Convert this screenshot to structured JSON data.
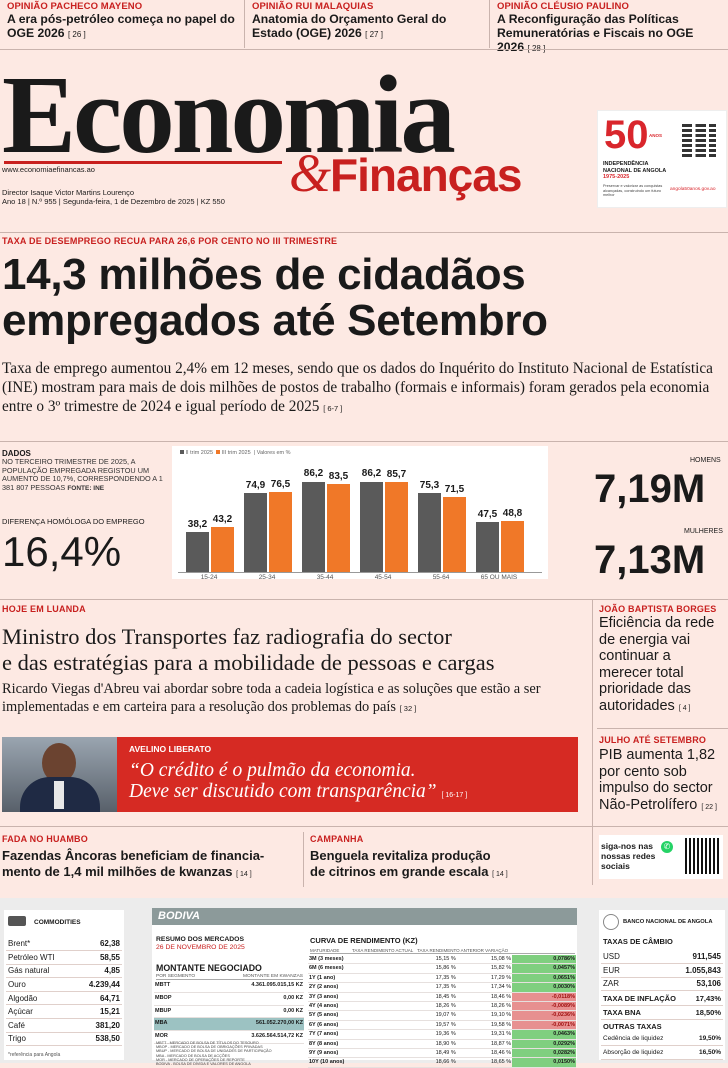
{
  "opinions": [
    {
      "kicker": "OPINIÃO PACHECO MAYENO",
      "title": "A era pós-petróleo começa no papel do OGE 2026",
      "page": "[ 26 ]"
    },
    {
      "kicker": "OPINIÃO RUI MALAQUIAS",
      "title": "Anatomia do Orçamento Geral do Estado (OGE) 2026",
      "page": "[ 27 ]"
    },
    {
      "kicker": "OPINIÃO CLÉUSIO PAULINO",
      "title": "A Reconfiguração das Políticas Remuneratórias e Fiscais no OGE 2026",
      "page": "[ 28 ]"
    }
  ],
  "masthead": {
    "logo_top": "Economia",
    "logo_amp": "&",
    "logo_bottom": "Finanças",
    "url": "www.economiaefinancas.ao",
    "director": "Director Isaque Victor Martins Lourenço",
    "issue": "Ano 18 | N.º 955 | Segunda-feira, 1 de Dezembro de 2025 | KZ 550"
  },
  "ad": {
    "number": "50",
    "anos": "ANOS",
    "line1": "INDEPENDÊNCIA",
    "line2": "NACIONAL DE ANGOLA",
    "years": "1975-2025",
    "tagline": "Preservar e valorizar as conquistas alcançadas, construindo um futuro melhor",
    "link": "angola50anos.gov.ao"
  },
  "main": {
    "kicker": "TAXA DE DESEMPREGO RECUA PARA 26,6 POR CENTO NO III TRIMESTRE",
    "headline_l1": "14,3 milhões de cidadãos",
    "headline_l2": "empregados até Setembro",
    "lead": "Taxa de emprego aumentou 2,4% em 12 meses, sendo que os dados do Inquérito do Instituto Nacional de Estatística (INE) mostram para mais de dois milhões de postos de trabalho (formais e informais) foram gerados pela economia entre o 3º trimestre de 2024 e igual período de 2025",
    "lead_page": "[ 6-7 ]"
  },
  "dados": {
    "title": "DADOS",
    "text": "NO TERCEIRO TRIMESTRE DE 2025, A POPULAÇÃO EMPREGADA REGISTOU UM AUMENTO DE 10,7%, CORRESPONDENDO A 1 381 807 PESSOAS",
    "source": "FONTE: INE",
    "diff_label": "DIFERENÇA HOMÓLOGA DO EMPREGO",
    "diff_value": "16,4%"
  },
  "gender": {
    "homens_label": "HOMENS",
    "homens_value": "7,19M",
    "mulheres_label": "MULHERES",
    "mulheres_value": "7,13M"
  },
  "chart_data": {
    "type": "bar",
    "legend": [
      "II trim 2025",
      "III trim 2025",
      "Valores em %"
    ],
    "categories": [
      "15-24",
      "25-34",
      "35-44",
      "45-54",
      "55-64",
      "65 OU MAIS"
    ],
    "series": [
      {
        "name": "II trim 2025",
        "values": [
          38.2,
          74.9,
          86.2,
          86.2,
          75.3,
          47.5
        ],
        "labels": [
          "38,2",
          "74,9",
          "86,2",
          "86,2",
          "75,3",
          "47,5"
        ],
        "color": "#5a5a5a"
      },
      {
        "name": "III trim 2025",
        "values": [
          43.2,
          76.5,
          83.5,
          85.7,
          71.5,
          48.8
        ],
        "labels": [
          "43,2",
          "76,5",
          "83,5",
          "85,7",
          "71,5",
          "48,8"
        ],
        "color": "#f07828"
      }
    ],
    "ylim": [
      0,
      100
    ]
  },
  "luanda": {
    "kicker": "HOJE EM LUANDA",
    "headline_l1": "Ministro dos Transportes faz radiografia do sector",
    "headline_l2": "e das estratégias para a mobilidade de pessoas e cargas",
    "lead": "Ricardo Viegas d'Abreu vai abordar sobre toda a cadeia logística e as soluções que estão a ser implementadas e em carteira para a resolução dos problemas do país",
    "page": "[ 32 ]"
  },
  "quote": {
    "name": "AVELINO LIBERATO",
    "l1": "“O crédito é o pulmão da economia.",
    "l2": "Deve ser discutido com transparência”",
    "page": "[ 16-17 ]"
  },
  "side": [
    {
      "kicker": "JOÃO BAPTISTA BORGES",
      "title": "Eficiência da rede de energia vai continuar a merecer total prioridade das autoridades",
      "page": "[ 4 ]"
    },
    {
      "kicker": "JULHO ATÉ SETEMBRO",
      "title": "PIB aumenta 1,82 por cento sob impulso do sector Não-Petrolífero",
      "page": "[ 22 ]"
    }
  ],
  "social": "siga-nos nas nossas redes sociais",
  "bottom_stories": [
    {
      "kicker": "FADA NO HUAMBO",
      "l1": "Fazendas Âncoras beneficiam de financia-",
      "l2": "mento de 1,4 mil milhões de kwanzas",
      "page": "[ 14 ]"
    },
    {
      "kicker": "CAMPANHA",
      "l1": "Benguela revitaliza produção",
      "l2": "de citrinos em grande escala",
      "page": "[ 14 ]"
    }
  ],
  "commodities": {
    "title": "COMMODITIES",
    "rows": [
      [
        "Brent*",
        "62,38"
      ],
      [
        "Petróleo WTI",
        "58,55"
      ],
      [
        "Gás natural",
        "4,85"
      ],
      [
        "Ouro",
        "4.239,44"
      ],
      [
        "Algodão",
        "64,71"
      ],
      [
        "Açúcar",
        "15,21"
      ],
      [
        "Café",
        "381,20"
      ],
      [
        "Trigo",
        "538,50"
      ]
    ],
    "note": "*referência para Angola"
  },
  "bodiva": {
    "brand": "BODIVA",
    "resumo": "RESUMO DOS MERCADOS",
    "date": "26 DE NOVEMBRO DE 2025",
    "montante": "MONTANTE NEGOCIADO",
    "col1": "POR SEGMENTO",
    "col2": "MONTANTE EM KWANZAS",
    "rows": [
      [
        "MBTT",
        "4.361.095.015,15 KZ"
      ],
      [
        "MBOP",
        "0,00 KZ"
      ],
      [
        "MBUP",
        "0,00 KZ"
      ],
      [
        "MBA",
        "561.052.270,00 KZ"
      ],
      [
        "MOR",
        "3.626.564.514,72 KZ"
      ]
    ],
    "notes": [
      "MBTT - MERCADO DE BOLSA DE TÍTULOS DO TESOURO",
      "MBOP - MERCADO DE BOLSA DE OBRIGAÇÕES PRIVADAS",
      "MBUP - MERCADO DE BOLSA DE UNIDADES DE PARTICIPAÇÃO",
      "MBA - MERCADO DE BOLSA DE ACÇÕES",
      "MOR - MERCADO DE OPERAÇÕES DE REPORTE",
      "BODIVA - BOLSA DE DÍVIDA E VALORES DE ANGOLA"
    ],
    "curve_title": "CURVA DE RENDIMENTO (KZ)",
    "curve_cols": [
      "MATURIDADE",
      "TAXA RENDIMENTO ACTUAL",
      "TAXA RENDIMENTO ANTERIOR",
      "VARIAÇÃO"
    ],
    "curve": [
      [
        "3M (3 meses)",
        "15,15 %",
        "15,08 %",
        "0,0786%"
      ],
      [
        "6M (6 meses)",
        "15,86 %",
        "15,82 %",
        "0,0457%"
      ],
      [
        "1Y (1 ano)",
        "17,35 %",
        "17,29 %",
        "0,0651%"
      ],
      [
        "2Y (2 anos)",
        "17,35 %",
        "17,34 %",
        "0,0030%"
      ],
      [
        "3Y (3 anos)",
        "18,45 %",
        "18,46 %",
        "-0,0118%"
      ],
      [
        "4Y (4 anos)",
        "18,26 %",
        "18,26 %",
        "-0,0089%"
      ],
      [
        "5Y (5 anos)",
        "19,07 %",
        "19,10 %",
        "-0,0236%"
      ],
      [
        "6Y (6 anos)",
        "19,57 %",
        "19,58 %",
        "-0,0071%"
      ],
      [
        "7Y (7 anos)",
        "19,36 %",
        "19,31 %",
        "0,0463%"
      ],
      [
        "8Y (8 anos)",
        "18,90 %",
        "18,87 %",
        "0,0292%"
      ],
      [
        "9Y (9 anos)",
        "18,49 %",
        "18,46 %",
        "0,0282%"
      ],
      [
        "10Y (10 anos)",
        "18,66 %",
        "18,65 %",
        "0,0150%"
      ]
    ]
  },
  "bna": {
    "title": "BANCO NACIONAL DE ANGOLA",
    "cambio": "TAXAS DE CÂMBIO",
    "fx": [
      [
        "USD",
        "911,545"
      ],
      [
        "EUR",
        "1.055,843"
      ],
      [
        "ZAR",
        "53,106"
      ]
    ],
    "inflacao_label": "TAXA DE INFLAÇÃO",
    "inflacao": "17,43%",
    "bna_label": "TAXA BNA",
    "bna": "18,50%",
    "outras": "OUTRAS TAXAS",
    "other": [
      [
        "Cedência de liquidez",
        "19,50%"
      ],
      [
        "Absorção de liquidez",
        "16,50%"
      ]
    ]
  }
}
